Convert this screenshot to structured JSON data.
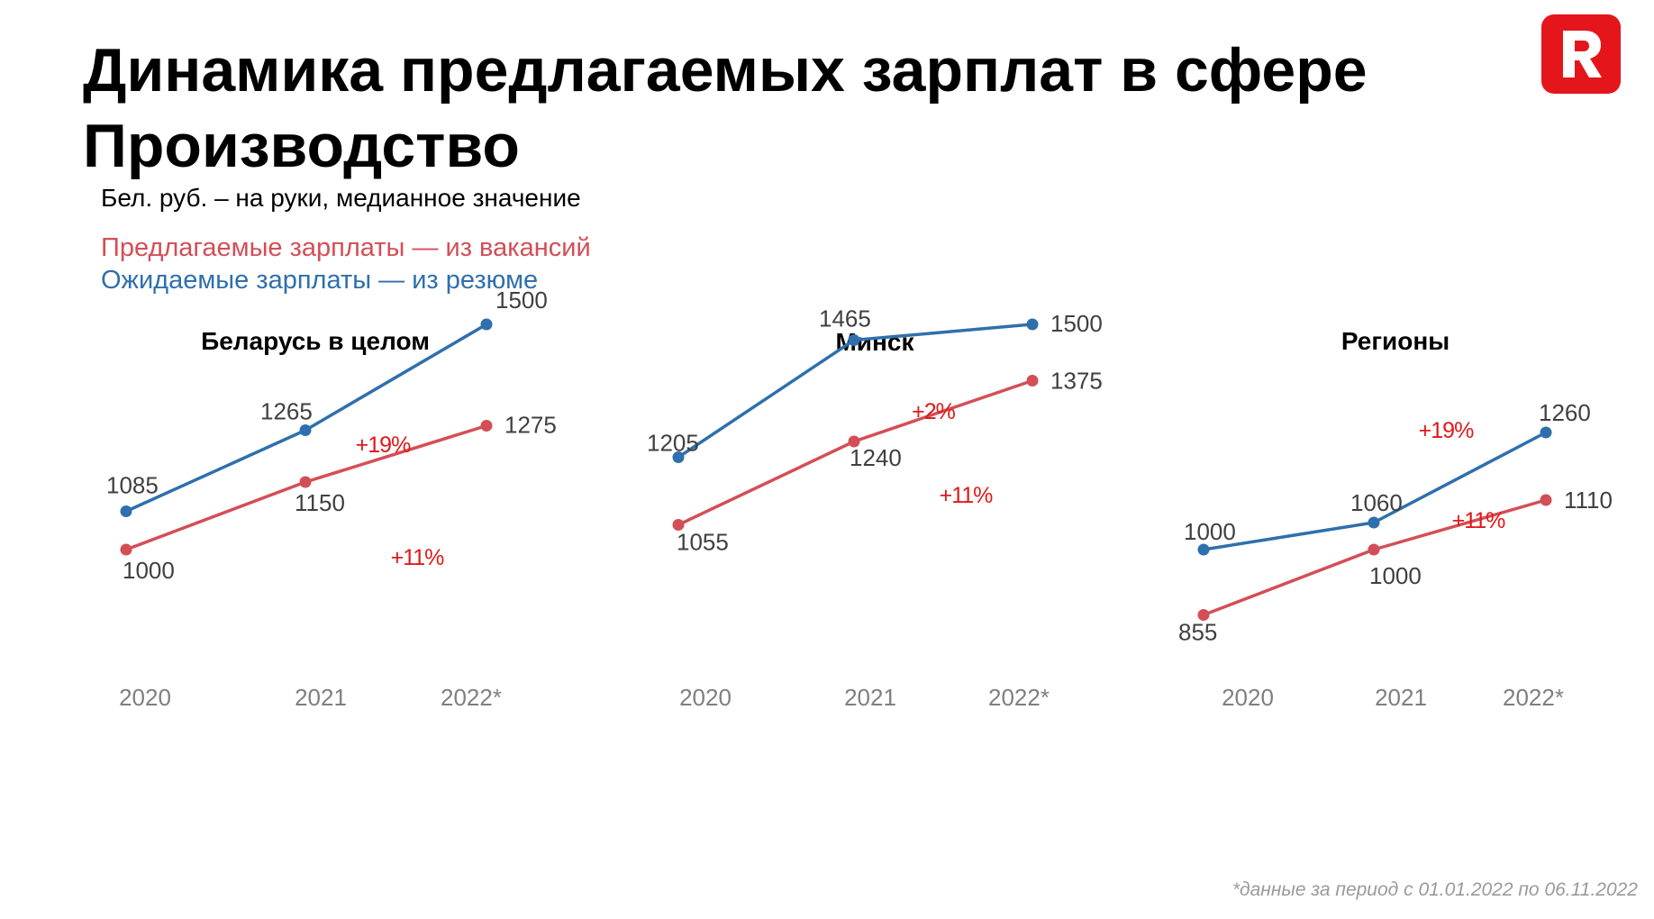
{
  "title": "Динамика предлагаемых зарплат в сфере Производство",
  "subtitle": "Бел. руб. – на руки, медианное значение",
  "legend": {
    "offered": "Предлагаемые зарплаты — из вакансий",
    "expected": "Ожидаемые зарплаты — из резюме"
  },
  "colors": {
    "offered": "#d44e56",
    "expected": "#2f6fad",
    "growth": "#e01818",
    "logo": "#e4161b"
  },
  "logo": {
    "letter": "R",
    "icon": "rabota-logo-icon"
  },
  "footnote": "*данные за период с 01.01.2022 по 06.11.2022",
  "chart_data": [
    {
      "type": "line",
      "title": "Беларусь в целом",
      "x": [
        "2020",
        "2021",
        "2022*"
      ],
      "series": [
        {
          "name": "Ожидаемые зарплаты — из резюме",
          "key": "expected",
          "values": [
            1085,
            1265,
            1500
          ]
        },
        {
          "name": "Предлагаемые зарплаты — из вакансий",
          "key": "offered",
          "values": [
            1000,
            1150,
            1275
          ]
        }
      ],
      "annotations": [
        {
          "series": "expected",
          "text": "+19%"
        },
        {
          "series": "offered",
          "text": "+11%"
        }
      ]
    },
    {
      "type": "line",
      "title": "Минск",
      "x": [
        "2020",
        "2021",
        "2022*"
      ],
      "series": [
        {
          "name": "Ожидаемые зарплаты — из резюме",
          "key": "expected",
          "values": [
            1205,
            1465,
            1500
          ]
        },
        {
          "name": "Предлагаемые зарплаты — из вакансий",
          "key": "offered",
          "values": [
            1055,
            1240,
            1375
          ]
        }
      ],
      "annotations": [
        {
          "series": "expected",
          "text": "+2%"
        },
        {
          "series": "offered",
          "text": "+11%"
        }
      ]
    },
    {
      "type": "line",
      "title": "Регионы",
      "x": [
        "2020",
        "2021",
        "2022*"
      ],
      "series": [
        {
          "name": "Ожидаемые зарплаты — из резюме",
          "key": "expected",
          "values": [
            1000,
            1060,
            1260
          ]
        },
        {
          "name": "Предлагаемые зарплаты — из вакансий",
          "key": "offered",
          "values": [
            855,
            1000,
            1110
          ]
        }
      ],
      "annotations": [
        {
          "series": "expected",
          "text": "+19%"
        },
        {
          "series": "offered",
          "text": "+11%"
        }
      ]
    }
  ]
}
